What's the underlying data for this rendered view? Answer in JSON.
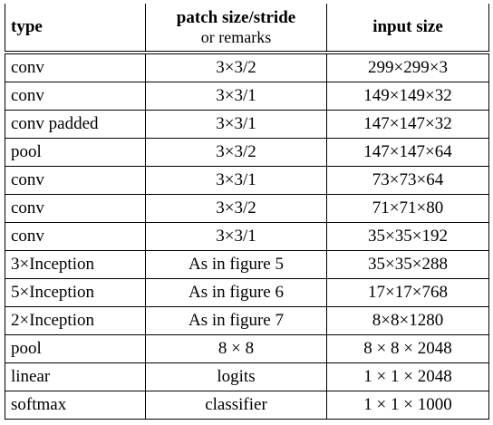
{
  "table": {
    "header": {
      "type": "type",
      "patch": "patch size/stride",
      "patch_sub": "or remarks",
      "input": "input size"
    },
    "rows": [
      [
        "conv",
        "3×3/2",
        "299×299×3"
      ],
      [
        "conv",
        "3×3/1",
        "149×149×32"
      ],
      [
        "conv padded",
        "3×3/1",
        "147×147×32"
      ],
      [
        "pool",
        "3×3/2",
        "147×147×64"
      ],
      [
        "conv",
        "3×3/1",
        "73×73×64"
      ],
      [
        "conv",
        "3×3/2",
        "71×71×80"
      ],
      [
        "conv",
        "3×3/1",
        "35×35×192"
      ],
      [
        "3×Inception",
        "As in figure 5",
        "35×35×288"
      ],
      [
        "5×Inception",
        "As in figure 6",
        "17×17×768"
      ],
      [
        "2×Inception",
        "As in figure 7",
        "8×8×1280"
      ],
      [
        "pool",
        "8 × 8",
        "8 × 8 × 2048"
      ],
      [
        "linear",
        "logits",
        "1 × 1 × 2048"
      ],
      [
        "softmax",
        "classifier",
        "1 × 1 × 1000"
      ]
    ]
  }
}
